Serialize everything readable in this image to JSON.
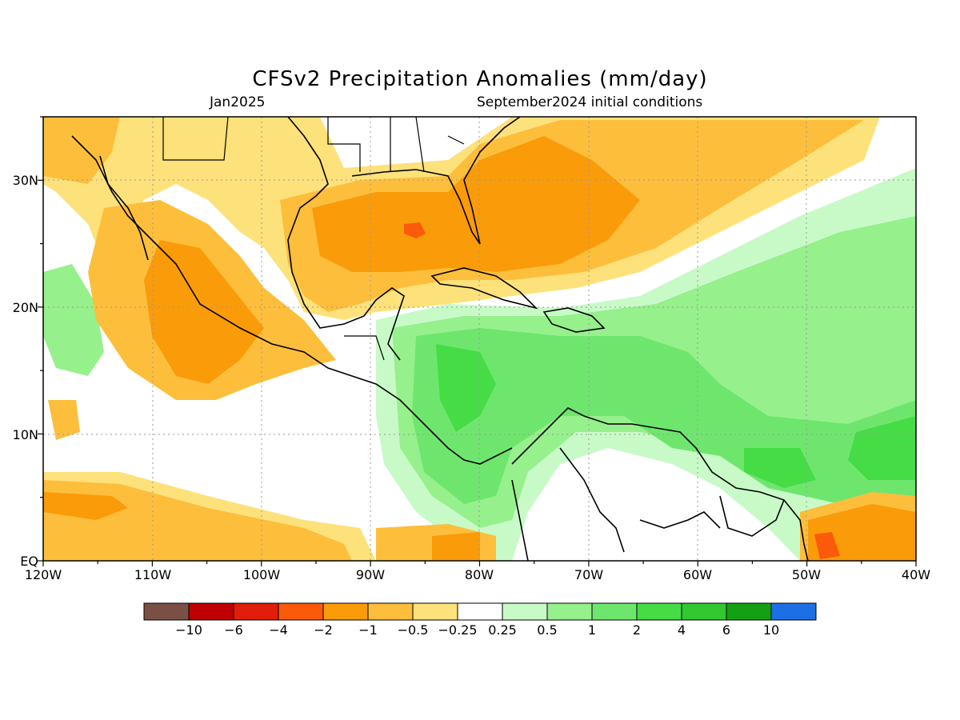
{
  "title": "CFSv2 Precipitation Anomalies (mm/day)",
  "valid_month": "Jan2025",
  "initial_conditions": "September2024 initial conditions",
  "map": {
    "lon_labels": [
      "120W",
      "110W",
      "100W",
      "90W",
      "80W",
      "70W",
      "60W",
      "50W",
      "40W"
    ],
    "lat_labels": [
      "EQ",
      "10N",
      "20N",
      "30N"
    ],
    "lon_range": [
      -120,
      -40
    ],
    "lat_range": [
      0,
      35
    ],
    "grid": "dotted"
  },
  "colorbar": {
    "labels": [
      "-10",
      "-6",
      "-4",
      "-2",
      "-1",
      "-0.5",
      "-0.25",
      "0.25",
      "0.5",
      "1",
      "2",
      "4",
      "6",
      "10"
    ],
    "colors": [
      "#7a5046",
      "#c00000",
      "#e01e0a",
      "#fa5a0a",
      "#fa9b0a",
      "#fdbe3c",
      "#fde17a",
      "#ffffff",
      "#c8fac8",
      "#96f08c",
      "#6ee66e",
      "#46dc46",
      "#32c832",
      "#14a014",
      "#1e6ee6"
    ]
  }
}
